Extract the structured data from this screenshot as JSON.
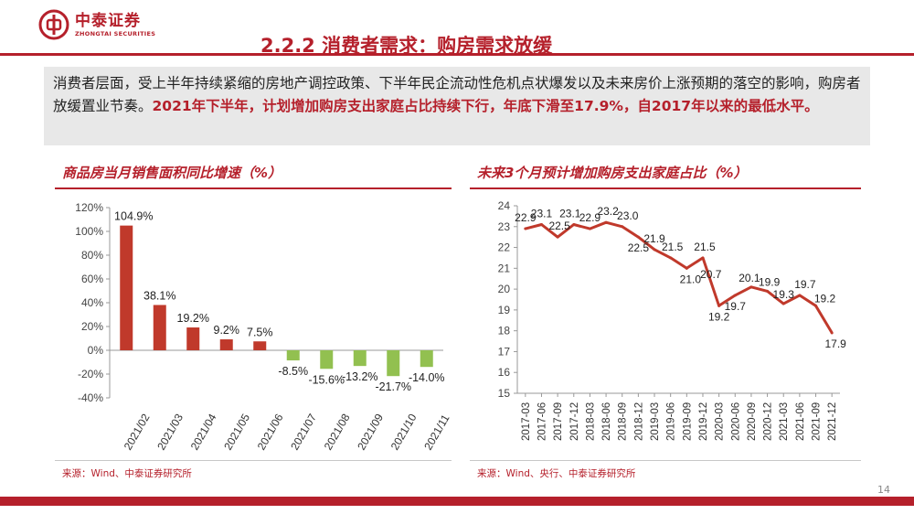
{
  "header": {
    "logo_cn": "中泰证券",
    "logo_en": "ZHONGTAI SECURITIES",
    "page_title": "2.2.2 消费者需求：购房需求放缓"
  },
  "summary": {
    "normal": "消费者层面，受上半年持续紧缩的房地产调控政策、下半年民企流动性危机点状爆发以及未来房价上涨预期的落空的影响，购房者放缓置业节奏。",
    "highlight": "2021年下半年，计划增加购房支出家庭占比持续下行，年底下滑至17.9%，自2017年以来的最低水平。"
  },
  "left_panel": {
    "title": "商品房当月销售面积同比增速（%）",
    "source": "来源：Wind、中泰证券研究所"
  },
  "right_panel": {
    "title": "未来3个月预计增加购房支出家庭占比（%）",
    "source": "来源：Wind、央行、中泰证券研究所"
  },
  "page_number": "14",
  "colors": {
    "brand_red": "#b5202b",
    "bar_positive": "#c0392b",
    "bar_negative": "#92c050",
    "line": "#c0392b"
  },
  "chart_data": [
    {
      "type": "bar",
      "categories": [
        "2021/02",
        "2021/03",
        "2021/04",
        "2021/05",
        "2021/06",
        "2021/07",
        "2021/08",
        "2021/09",
        "2021/10",
        "2021/11"
      ],
      "values": [
        104.9,
        38.1,
        19.2,
        9.2,
        7.5,
        -8.5,
        -15.6,
        -13.2,
        -21.7,
        -14.0
      ],
      "value_labels": [
        "104.9%",
        "38.1%",
        "19.2%",
        "9.2%",
        "7.5%",
        "-8.5%",
        "-15.6%",
        "-13.2%",
        "-21.7%",
        "-14.0%"
      ],
      "ylim": [
        -40,
        120
      ],
      "yticks": [
        -40,
        -20,
        0,
        20,
        40,
        60,
        80,
        100,
        120
      ],
      "ytick_labels": [
        "-40%",
        "-20%",
        "0%",
        "20%",
        "40%",
        "60%",
        "80%",
        "100%",
        "120%"
      ],
      "grid": false,
      "legend": "none"
    },
    {
      "type": "line",
      "x": [
        "2017-03",
        "2017-06",
        "2017-09",
        "2017-12",
        "2018-03",
        "2018-06",
        "2018-09",
        "2018-12",
        "2019-03",
        "2019-06",
        "2019-09",
        "2019-12",
        "2020-03",
        "2020-06",
        "2020-09",
        "2020-12",
        "2021-03",
        "2021-06",
        "2021-09",
        "2021-12"
      ],
      "values": [
        22.9,
        23.1,
        22.5,
        23.1,
        22.9,
        23.2,
        23.0,
        22.5,
        21.9,
        21.5,
        21.0,
        21.5,
        19.2,
        19.7,
        20.1,
        19.9,
        19.3,
        19.7,
        19.2,
        17.9
      ],
      "value_labels": [
        "22.9",
        "23.1",
        "22.5",
        "23.1",
        "22.9",
        "23.2",
        "23.0",
        "22.5",
        "21.9",
        "21.5",
        "21.0",
        "21.5",
        "19.2",
        "19.7",
        "20.1",
        "19.9",
        "19.3",
        "19.7",
        "19.2",
        "17.9"
      ],
      "extra_label": "20.7",
      "ylim": [
        15,
        24
      ],
      "yticks": [
        15,
        16,
        17,
        18,
        19,
        20,
        21,
        22,
        23,
        24
      ],
      "grid": false,
      "legend": "none"
    }
  ]
}
